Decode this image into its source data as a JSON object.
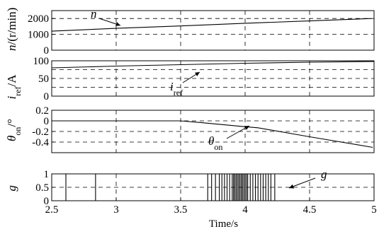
{
  "chart_data": [
    {
      "type": "line",
      "ylabel": "n/(r/min)",
      "ylim": [
        0,
        2500
      ],
      "yticks": [
        0,
        1000,
        2000
      ],
      "grid_y": [
        1000,
        2000
      ],
      "xlim": [
        2.5,
        5
      ],
      "series": [
        {
          "name": "n",
          "x": [
            2.5,
            3.0,
            3.5,
            4.0,
            4.5,
            4.98
          ],
          "y": [
            1200,
            1380,
            1530,
            1700,
            1850,
            2000
          ]
        }
      ],
      "annotation": {
        "text": "n"
      }
    },
    {
      "type": "line",
      "ylabel": "i_ref/A",
      "ylim": [
        0,
        100
      ],
      "yticks": [
        0,
        50,
        100
      ],
      "grid_y": [
        25,
        50,
        75
      ],
      "xlim": [
        2.5,
        5
      ],
      "series": [
        {
          "name": "i_ref",
          "x": [
            2.5,
            3.0,
            3.5,
            4.0,
            4.5,
            5.0
          ],
          "y": [
            80,
            85,
            89,
            93,
            96,
            98
          ]
        }
      ],
      "annotation": {
        "text": "i_ref"
      }
    },
    {
      "type": "line",
      "ylabel": "θ_on/°",
      "ylim": [
        -0.6,
        0.2
      ],
      "yticks": [
        -0.4,
        -0.2,
        0,
        0.2
      ],
      "ytick_labels": [
        "-0.4",
        "-0.2",
        "0",
        "0.2"
      ],
      "grid_y": [
        -0.4,
        -0.2,
        0
      ],
      "xlim": [
        2.5,
        5
      ],
      "series": [
        {
          "name": "θ_on",
          "x": [
            2.5,
            3.5,
            3.65,
            4.0,
            4.1,
            4.5,
            4.99
          ],
          "y": [
            0,
            0,
            -0.03,
            -0.11,
            -0.13,
            -0.3,
            -0.5
          ]
        }
      ],
      "annotation": {
        "text": "θ_on"
      }
    },
    {
      "type": "line",
      "ylabel": "g",
      "ylim": [
        0,
        1
      ],
      "yticks": [
        0,
        0.5,
        1
      ],
      "grid_y": [
        0.5
      ],
      "xlim": [
        2.5,
        5
      ],
      "xticks": [
        2.5,
        3,
        3.5,
        4,
        4.5,
        5
      ],
      "xlabel": "Time/s",
      "pulses": [
        2.61,
        2.84,
        3.71,
        3.74,
        3.77,
        3.8,
        3.82,
        3.84,
        3.86,
        3.88,
        3.9,
        3.91,
        3.92,
        3.93,
        3.94,
        3.95,
        3.96,
        3.97,
        3.98,
        3.99,
        4.0,
        4.01,
        4.02,
        4.04,
        4.06,
        4.08,
        4.1,
        4.12,
        4.14,
        4.16,
        4.18,
        4.2,
        4.23
      ],
      "annotation": {
        "text": "g"
      }
    }
  ]
}
